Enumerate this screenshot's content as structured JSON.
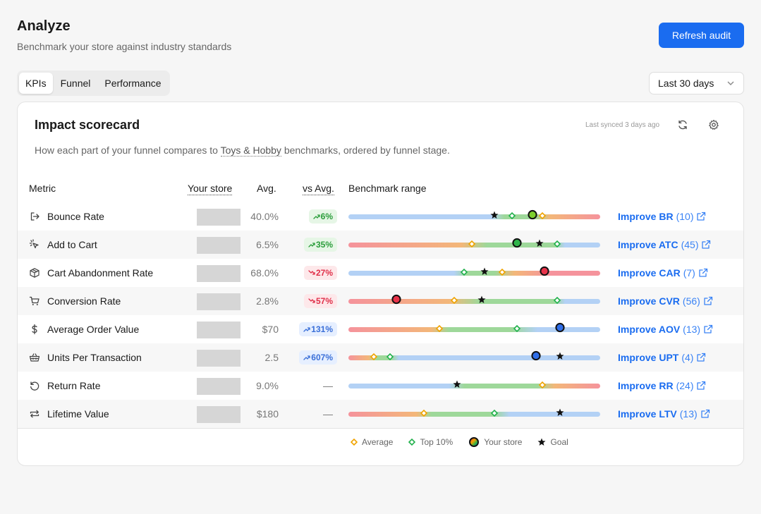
{
  "header": {
    "title": "Analyze",
    "subtitle": "Benchmark your store against industry standards",
    "refresh_label": "Refresh audit"
  },
  "tabs": [
    {
      "label": "KPIs",
      "active": true
    },
    {
      "label": "Funnel",
      "active": false
    },
    {
      "label": "Performance",
      "active": false
    }
  ],
  "date_range": {
    "selected": "Last 30 days"
  },
  "card": {
    "title": "Impact scorecard",
    "synced": "Last synced 3 days ago",
    "desc_before": "How each part of your funnel compares to ",
    "desc_link": "Toys & Hobby",
    "desc_after": " benchmarks, ordered by funnel stage."
  },
  "columns": {
    "metric": "Metric",
    "your_store": "Your store",
    "avg": "Avg.",
    "vs_avg": "vs Avg.",
    "range": "Benchmark range"
  },
  "colors": {
    "accent": "#1a6cf0",
    "good_bg": "#e6f6e6",
    "good_fg": "#2a9d3a",
    "bad_bg": "#fde8ea",
    "bad_fg": "#e0304a",
    "info_bg": "#e6efff",
    "info_fg": "#3a6fd8",
    "avg_marker": "#f0a300",
    "top_marker": "#22b14c"
  },
  "rows": [
    {
      "icon": "logout-icon",
      "name": "Bounce Rate",
      "avg": "40.0%",
      "delta": "6%",
      "delta_tone": "good",
      "delta_dir": "up",
      "bar": "linear-gradient(90deg,#b3d1f5 0%,#b3d1f5 57%,#9ed89a 62%,#9ed89a 74%,#f3b779 80%,#f5939c 100%)",
      "markers": [
        {
          "t": "goal",
          "p": 0.58
        },
        {
          "t": "top",
          "p": 0.65
        },
        {
          "t": "you",
          "p": 0.73,
          "c": "#7dcf2e"
        },
        {
          "t": "avg",
          "p": 0.77
        }
      ],
      "improve": "Improve BR",
      "count": "(10)"
    },
    {
      "icon": "sparkle-cursor-icon",
      "name": "Add to Cart",
      "avg": "6.5%",
      "delta": "35%",
      "delta_tone": "good",
      "delta_dir": "up",
      "bar": "linear-gradient(90deg,#f5939c 0%,#f3b779 45%,#9ed89a 55%,#9ed89a 82%,#b3d1f5 86%,#b3d1f5 100%)",
      "markers": [
        {
          "t": "avg",
          "p": 0.49
        },
        {
          "t": "you",
          "p": 0.67,
          "c": "#2fb54a"
        },
        {
          "t": "goal",
          "p": 0.76
        },
        {
          "t": "top",
          "p": 0.83
        }
      ],
      "improve": "Improve ATC",
      "count": "(45)"
    },
    {
      "icon": "box-icon",
      "name": "Cart Abandonment Rate",
      "avg": "68.0%",
      "delta": "27%",
      "delta_tone": "bad",
      "delta_dir": "down",
      "bar": "linear-gradient(90deg,#b3d1f5 0%,#b3d1f5 42%,#9ed89a 47%,#9ed89a 58%,#f3b779 66%,#f5939c 80%,#f5939c 100%)",
      "markers": [
        {
          "t": "top",
          "p": 0.46
        },
        {
          "t": "goal",
          "p": 0.54
        },
        {
          "t": "avg",
          "p": 0.61
        },
        {
          "t": "you",
          "p": 0.78,
          "c": "#e8334a"
        }
      ],
      "improve": "Improve CAR",
      "count": "(7)"
    },
    {
      "icon": "cart-icon",
      "name": "Conversion Rate",
      "avg": "2.8%",
      "delta": "57%",
      "delta_tone": "bad",
      "delta_dir": "down",
      "bar": "linear-gradient(90deg,#f5939c 0%,#f3b779 40%,#9ed89a 52%,#9ed89a 82%,#b3d1f5 86%,#b3d1f5 100%)",
      "markers": [
        {
          "t": "you",
          "p": 0.19,
          "c": "#e8334a"
        },
        {
          "t": "avg",
          "p": 0.42
        },
        {
          "t": "goal",
          "p": 0.53
        },
        {
          "t": "top",
          "p": 0.83
        }
      ],
      "improve": "Improve CVR",
      "count": "(56)"
    },
    {
      "icon": "dollar-icon",
      "name": "Average Order Value",
      "avg": "$70",
      "delta": "131%",
      "delta_tone": "info",
      "delta_dir": "up",
      "bar": "linear-gradient(90deg,#f5939c 0%,#f3b779 33%,#9ed89a 40%,#9ed89a 65%,#b3d1f5 75%,#b3d1f5 100%)",
      "markers": [
        {
          "t": "avg",
          "p": 0.36
        },
        {
          "t": "top",
          "p": 0.67
        },
        {
          "t": "you",
          "p": 0.84,
          "c": "#2f6ee8"
        }
      ],
      "improve": "Improve AOV",
      "count": "(13)"
    },
    {
      "icon": "basket-icon",
      "name": "Units Per Transaction",
      "avg": "2.5",
      "delta": "607%",
      "delta_tone": "info",
      "delta_dir": "up",
      "bar": "linear-gradient(90deg,#f5939c 0%,#f3b779 8%,#9ed89a 11%,#9ed89a 17%,#b3d1f5 20%,#b3d1f5 100%)",
      "markers": [
        {
          "t": "avg",
          "p": 0.1
        },
        {
          "t": "top",
          "p": 0.165
        },
        {
          "t": "you",
          "p": 0.745,
          "c": "#2f6ee8"
        },
        {
          "t": "goal",
          "p": 0.84
        }
      ],
      "improve": "Improve UPT",
      "count": "(4)"
    },
    {
      "icon": "return-icon",
      "name": "Return Rate",
      "avg": "9.0%",
      "delta": "—",
      "delta_tone": "none",
      "delta_dir": "",
      "bar": "linear-gradient(90deg,#b3d1f5 0%,#b3d1f5 40%,#9ed89a 46%,#9ed89a 75%,#f3b779 82%,#f5939c 100%)",
      "markers": [
        {
          "t": "goal",
          "p": 0.43
        },
        {
          "t": "avg",
          "p": 0.77
        }
      ],
      "improve": "Improve RR",
      "count": "(24)"
    },
    {
      "icon": "repeat-icon",
      "name": "Lifetime Value",
      "avg": "$180",
      "delta": "—",
      "delta_tone": "none",
      "delta_dir": "",
      "bar": "linear-gradient(90deg,#f5939c 0%,#f3b779 27%,#9ed89a 33%,#9ed89a 58%,#b3d1f5 64%,#b3d1f5 100%)",
      "markers": [
        {
          "t": "avg",
          "p": 0.3
        },
        {
          "t": "top",
          "p": 0.58
        },
        {
          "t": "goal",
          "p": 0.84
        }
      ],
      "improve": "Improve LTV",
      "count": "(13)"
    }
  ],
  "legend": [
    {
      "type": "avg",
      "label": "Average"
    },
    {
      "type": "top",
      "label": "Top 10%"
    },
    {
      "type": "you",
      "label": "Your store"
    },
    {
      "type": "goal",
      "label": "Goal"
    }
  ]
}
